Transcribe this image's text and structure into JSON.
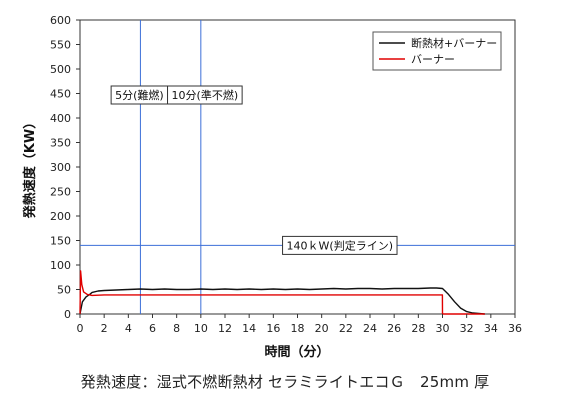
{
  "caption": "発熱速度：湿式不燃断熱材 セラミライトエコＧ　25mm 厚",
  "chart_data": {
    "type": "line",
    "xlabel": "時間（分）",
    "ylabel": "発熱速度（KW）",
    "xlim": [
      0,
      36
    ],
    "ylim": [
      0,
      600
    ],
    "x_ticks": [
      0,
      2,
      4,
      6,
      8,
      10,
      12,
      14,
      16,
      18,
      20,
      22,
      24,
      26,
      28,
      30,
      32,
      34,
      36
    ],
    "y_ticks": [
      0,
      50,
      100,
      150,
      200,
      250,
      300,
      350,
      400,
      450,
      500,
      550,
      600
    ],
    "grid": false,
    "legend_position": "top-right",
    "series": [
      {
        "name": "断熱材+バーナー",
        "color": "#111111",
        "x": [
          0,
          0.2,
          0.5,
          0.8,
          1.0,
          1.5,
          2,
          3,
          4,
          5,
          6,
          7,
          8,
          9,
          10,
          11,
          12,
          13,
          14,
          15,
          16,
          17,
          18,
          19,
          20,
          21,
          22,
          23,
          24,
          25,
          26,
          27,
          28,
          29,
          29.5,
          30,
          30.5,
          31,
          31.5,
          32,
          32.5,
          33,
          33.5
        ],
        "y": [
          0,
          25,
          35,
          40,
          44,
          47,
          48,
          49,
          50,
          51,
          50,
          51,
          50,
          50,
          51,
          50,
          51,
          50,
          51,
          50,
          51,
          50,
          51,
          50,
          51,
          52,
          51,
          52,
          52,
          51,
          52,
          52,
          52,
          53,
          53,
          52,
          40,
          25,
          12,
          5,
          2,
          1,
          0
        ]
      },
      {
        "name": "バーナー",
        "color": "#e00000",
        "x": [
          0,
          0.05,
          0.15,
          0.3,
          0.6,
          1.0,
          2,
          4,
          6,
          8,
          10,
          12,
          14,
          16,
          18,
          20,
          22,
          24,
          26,
          28,
          29.99,
          30.0,
          30.2,
          33.5
        ],
        "y": [
          0,
          88,
          60,
          45,
          40,
          38,
          39,
          39,
          39,
          39,
          39,
          39,
          39,
          39,
          39,
          39,
          39,
          39,
          39,
          39,
          39,
          0,
          0,
          0
        ]
      }
    ],
    "annotations": [
      {
        "type": "vline",
        "x": 5,
        "color": "#3c6fd8",
        "label": "5分(難燃)"
      },
      {
        "type": "vline",
        "x": 10,
        "color": "#3c6fd8",
        "label": "10分(準不燃)"
      },
      {
        "type": "hline",
        "y": 140,
        "color": "#3c6fd8",
        "label": "140ｋW(判定ライン)"
      }
    ]
  }
}
